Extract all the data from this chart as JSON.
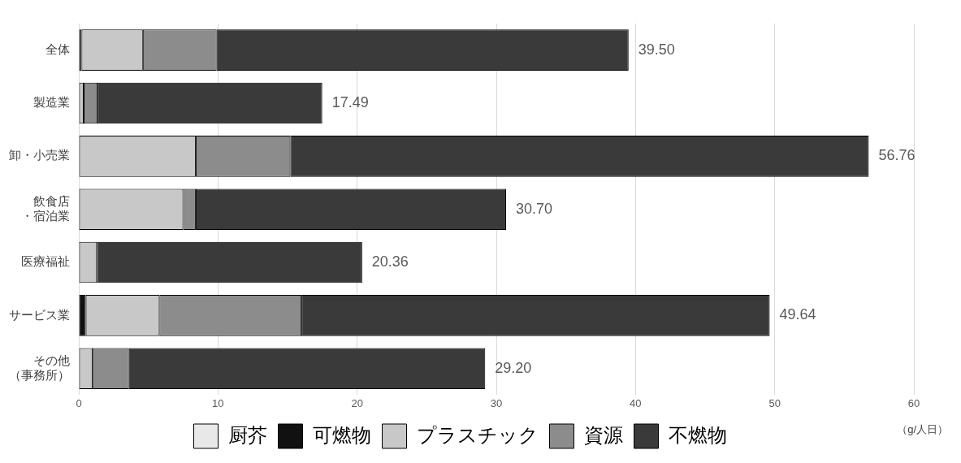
{
  "chart_data": {
    "type": "bar",
    "orientation": "horizontal",
    "stacked": true,
    "categories": [
      "全体",
      "製造業",
      "卸・小売業",
      "飲食店・宿泊業",
      "医療福祉",
      "サービス業",
      "その他（事務所）"
    ],
    "series": [
      {
        "name": "厨芥",
        "color": "#e8e8e8",
        "values": [
          0,
          0,
          0,
          0,
          0,
          0,
          0
        ]
      },
      {
        "name": "可燃物",
        "color": "#111111",
        "values": [
          0.2,
          0,
          0,
          0,
          0,
          0.5,
          0
        ]
      },
      {
        "name": "プラスチック",
        "color": "#c8c8c8",
        "values": [
          4.4,
          0.35,
          8.4,
          7.5,
          1.3,
          5.3,
          1.0
        ]
      },
      {
        "name": "資源",
        "color": "#8c8c8c",
        "values": [
          5.3,
          1.0,
          6.8,
          0.9,
          0,
          10.2,
          2.6
        ]
      },
      {
        "name": "不燃物",
        "color": "#3a3a3a",
        "values": [
          29.6,
          16.14,
          41.56,
          22.3,
          19.06,
          33.64,
          25.6
        ]
      }
    ],
    "totals": [
      "39.50",
      "17.49",
      "56.76",
      "30.70",
      "20.36",
      "49.64",
      "29.20"
    ],
    "xlim": [
      0,
      60
    ],
    "xticks": [
      0,
      10,
      20,
      30,
      40,
      50,
      60
    ],
    "grid": "x",
    "legend": "bottom",
    "annotations": [
      "（g/人日）"
    ]
  }
}
